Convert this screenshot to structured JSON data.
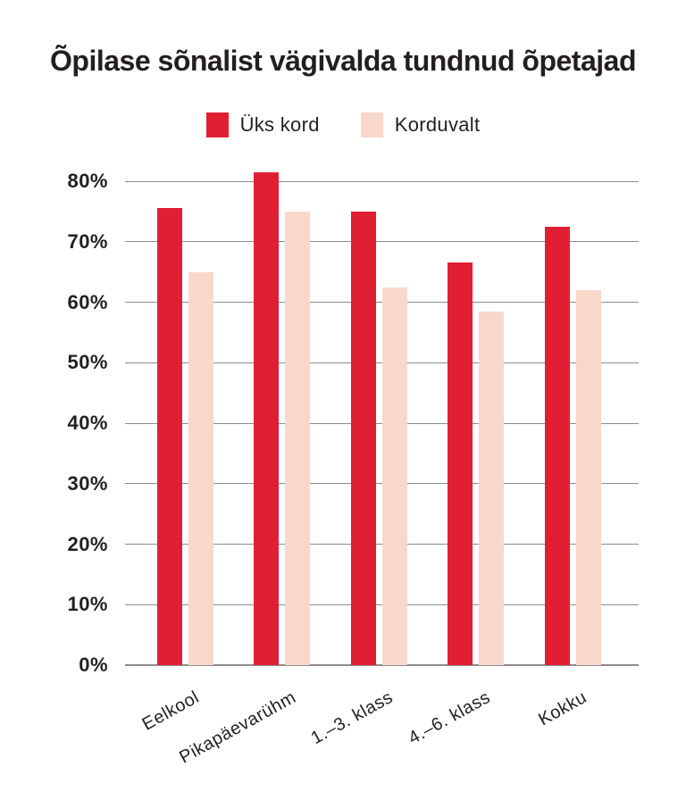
{
  "title": "Õpilase sõnalist vägivalda tundnud õpetajad",
  "legend": {
    "items": [
      {
        "label": "Üks kord",
        "color": "#e01f33"
      },
      {
        "label": "Korduvalt",
        "color": "#f8d8cb"
      }
    ]
  },
  "chart_data": {
    "type": "bar",
    "title": "Õpilase sõnalist vägivalda tundnud õpetajad",
    "categories": [
      "Eelkool",
      "Pikapäevarühm",
      "1.–3. klass",
      "4.–6. klass",
      "Kokku"
    ],
    "series": [
      {
        "name": "Üks kord",
        "color": "#e01f33",
        "values": [
          75.5,
          81.5,
          75.0,
          66.5,
          72.5
        ]
      },
      {
        "name": "Korduvalt",
        "color": "#f8d8cb",
        "values": [
          65.0,
          75.0,
          62.5,
          58.5,
          62.0
        ]
      }
    ],
    "y_axis": {
      "min": 0,
      "max": 80,
      "step": 10,
      "tick_format": "percent",
      "tick_labels": [
        "0%",
        "10%",
        "20%",
        "30%",
        "40%",
        "50%",
        "60%",
        "70%",
        "80%"
      ]
    },
    "x_axis": {
      "label_rotation_deg": -29
    },
    "grid": true,
    "legend_position": "top",
    "colors": {
      "bar_once": "#e01f33",
      "bar_repeatedly": "#f8d8cb",
      "text": "#231f20",
      "gridline": "#8c8c8c",
      "background": "#ffffff"
    }
  }
}
